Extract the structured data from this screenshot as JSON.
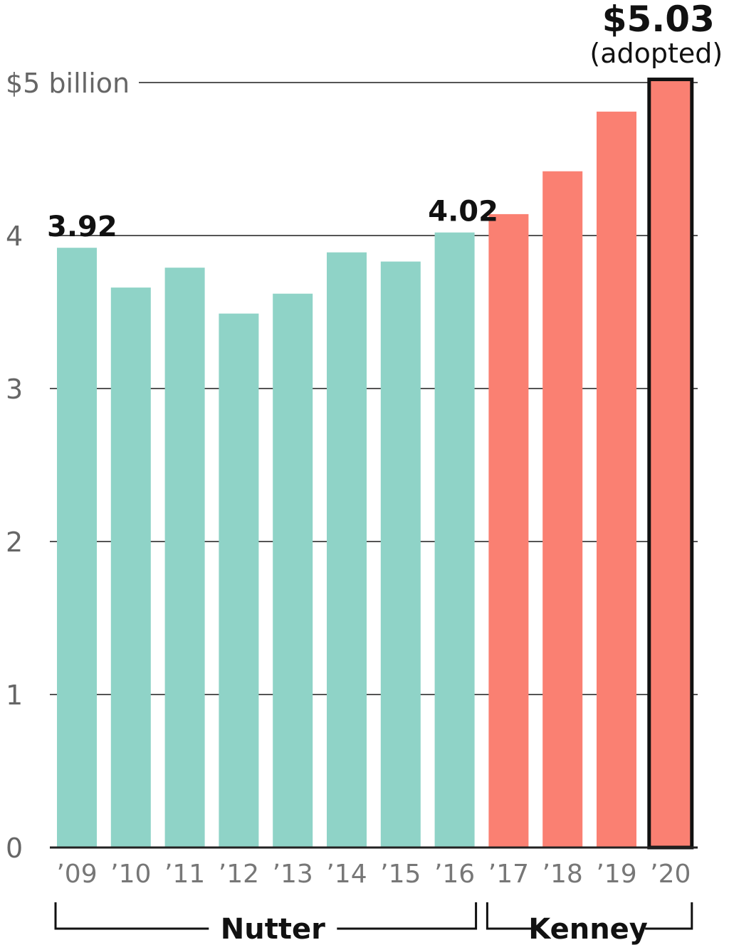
{
  "chart_data": {
    "type": "bar",
    "categories": [
      "’09",
      "’10",
      "’11",
      "’12",
      "’13",
      "’14",
      "’15",
      "’16",
      "’17",
      "’18",
      "’19",
      "’20"
    ],
    "values": [
      3.92,
      3.66,
      3.79,
      3.49,
      3.62,
      3.89,
      3.83,
      4.02,
      4.14,
      4.42,
      4.81,
      5.03
    ],
    "ylim": [
      0,
      5
    ],
    "y_ticks": [
      {
        "value": 0,
        "label": "0"
      },
      {
        "value": 1,
        "label": "1"
      },
      {
        "value": 2,
        "label": "2"
      },
      {
        "value": 3,
        "label": "3"
      },
      {
        "value": 4,
        "label": "4"
      },
      {
        "value": 5,
        "label": "$5 billion"
      }
    ],
    "grid": true,
    "bar_labels": [
      {
        "index": 0,
        "text": "3.92"
      },
      {
        "index": 7,
        "text": "4.02"
      }
    ],
    "callout": {
      "index": 11,
      "value_text": "$5.03",
      "note": "(adopted)"
    },
    "groups": [
      {
        "name": "Nutter",
        "start": 0,
        "end": 7,
        "color": "#8fd3c7"
      },
      {
        "name": "Kenney",
        "start": 8,
        "end": 11,
        "color": "#fa8072"
      }
    ],
    "highlight_index": 11,
    "highlight_outline_color": "#111111"
  }
}
